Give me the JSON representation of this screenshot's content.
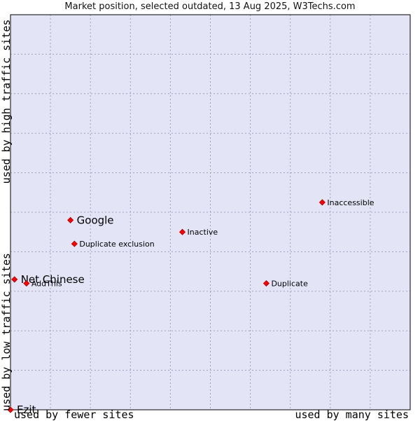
{
  "title": "Market position, selected outdated, 13 Aug 2025, W3Techs.com",
  "axes": {
    "y_high": "used by high traffic sites",
    "y_low": "used by low traffic sites",
    "x_low": "used by fewer sites",
    "x_high": "used by many sites"
  },
  "colors": {
    "plot_bg": "#e3e5f7",
    "grid": "#9fa0bf",
    "point": "#ff0000"
  },
  "chart_data": {
    "type": "scatter",
    "title": "Market position, selected outdated, 13 Aug 2025, W3Techs.com",
    "xlabel": "used by fewer sites / used by many sites",
    "ylabel": "used by low traffic sites / used by high traffic sites",
    "xlim": [
      0,
      10
    ],
    "ylim": [
      0,
      10
    ],
    "grid": true,
    "points": [
      {
        "label": "Google",
        "x": 1.5,
        "y": 4.8,
        "emphasis": true
      },
      {
        "label": "Net Chinese",
        "x": 0.1,
        "y": 3.3,
        "emphasis": true
      },
      {
        "label": "Ezit",
        "x": 0.0,
        "y": 0.0,
        "emphasis": true
      },
      {
        "label": "Inaccessible",
        "x": 7.8,
        "y": 5.25,
        "emphasis": false
      },
      {
        "label": "Inactive",
        "x": 4.3,
        "y": 4.5,
        "emphasis": false
      },
      {
        "label": "Duplicate exclusion",
        "x": 1.6,
        "y": 4.2,
        "emphasis": false
      },
      {
        "label": "AddThis",
        "x": 0.4,
        "y": 3.2,
        "emphasis": false
      },
      {
        "label": "Duplicate",
        "x": 6.4,
        "y": 3.2,
        "emphasis": false
      }
    ]
  }
}
